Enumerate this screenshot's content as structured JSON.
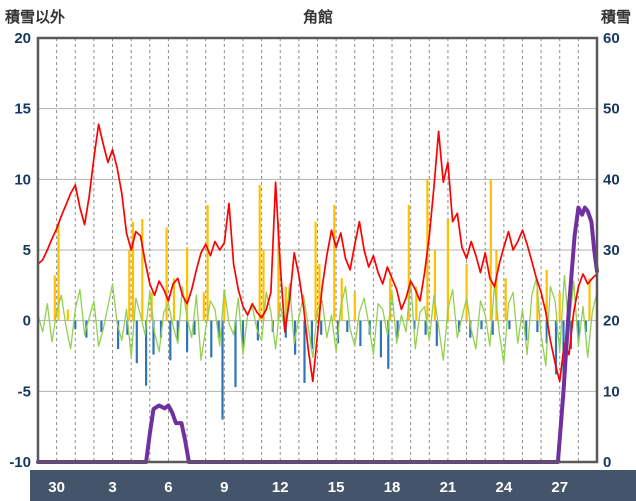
{
  "chart_data": {
    "type": "line",
    "title": "角館",
    "left_axis": {
      "label": "積雪以外",
      "min": -10,
      "max": 20,
      "ticks": [
        20,
        15,
        10,
        5,
        0,
        -5,
        -10
      ]
    },
    "right_axis": {
      "label": "積雪",
      "min": 0,
      "max": 60,
      "ticks": [
        60,
        50,
        40,
        30,
        20,
        10,
        0
      ]
    },
    "x_axis": {
      "min": 0,
      "max": 30,
      "tick_days": [
        1,
        4,
        7,
        10,
        13,
        16,
        19,
        22,
        25,
        28
      ],
      "tick_labels": [
        "30",
        "3",
        "6",
        "9",
        "12",
        "15",
        "18",
        "21",
        "24",
        "27"
      ],
      "gridline_interval_days": 1
    },
    "grid": true,
    "legend": "none",
    "colors": {
      "grid": "#b3b3b3",
      "vgrid": "#8c8c8c",
      "border": "#595959",
      "tick_text": "#17375d",
      "footer_bg": "#44546a",
      "footer_text": "#ffffff",
      "header_text": "#333333"
    },
    "series": [
      {
        "name": "orange-bars",
        "kind": "bar",
        "axis": "left",
        "color": "#FFC000",
        "points": [
          [
            0.9,
            3.2
          ],
          [
            1.1,
            7.0
          ],
          [
            1.6,
            0.8
          ],
          [
            4.9,
            5.0
          ],
          [
            5.1,
            7.0
          ],
          [
            5.6,
            7.2
          ],
          [
            6.1,
            2.0
          ],
          [
            6.9,
            6.6
          ],
          [
            7.3,
            3.0
          ],
          [
            8.0,
            5.2
          ],
          [
            8.9,
            2.0
          ],
          [
            9.1,
            8.2
          ],
          [
            10.0,
            2.2
          ],
          [
            11.9,
            9.6
          ],
          [
            12.1,
            5.0
          ],
          [
            12.9,
            7.0
          ],
          [
            13.3,
            2.4
          ],
          [
            14.9,
            7.0
          ],
          [
            15.1,
            4.0
          ],
          [
            15.9,
            8.2
          ],
          [
            16.3,
            3.0
          ],
          [
            17.0,
            2.0
          ],
          [
            18.9,
            3.0
          ],
          [
            19.9,
            8.2
          ],
          [
            20.3,
            2.4
          ],
          [
            20.9,
            10.0
          ],
          [
            21.3,
            5.0
          ],
          [
            22.0,
            7.2
          ],
          [
            23.0,
            4.0
          ],
          [
            24.3,
            10.0
          ],
          [
            24.6,
            5.0
          ],
          [
            25.1,
            3.0
          ],
          [
            26.8,
            2.2
          ],
          [
            27.3,
            3.6
          ],
          [
            28.0,
            2.0
          ],
          [
            29.6,
            3.0
          ]
        ]
      },
      {
        "name": "blue-bars",
        "kind": "bar",
        "axis": "left",
        "color": "#2E75B6",
        "points": [
          [
            2.0,
            -0.6
          ],
          [
            2.6,
            -1.2
          ],
          [
            3.4,
            -0.8
          ],
          [
            4.3,
            -2.0
          ],
          [
            4.8,
            -1.0
          ],
          [
            5.3,
            -3.0
          ],
          [
            5.8,
            -4.6
          ],
          [
            6.2,
            -2.4
          ],
          [
            6.6,
            -1.2
          ],
          [
            7.1,
            -2.8
          ],
          [
            7.5,
            -1.4
          ],
          [
            8.0,
            -2.2
          ],
          [
            8.4,
            -1.0
          ],
          [
            9.3,
            -2.6
          ],
          [
            9.7,
            -1.2
          ],
          [
            9.9,
            -7.0
          ],
          [
            10.6,
            -4.7
          ],
          [
            11.0,
            -2.0
          ],
          [
            11.8,
            -1.4
          ],
          [
            12.6,
            -0.8
          ],
          [
            13.3,
            -1.2
          ],
          [
            13.8,
            -2.4
          ],
          [
            14.3,
            -4.4
          ],
          [
            14.7,
            -2.0
          ],
          [
            15.2,
            -1.0
          ],
          [
            16.1,
            -1.6
          ],
          [
            16.6,
            -0.8
          ],
          [
            17.3,
            -1.8
          ],
          [
            17.8,
            -1.0
          ],
          [
            18.4,
            -2.6
          ],
          [
            18.8,
            -3.4
          ],
          [
            19.3,
            -1.2
          ],
          [
            20.2,
            -0.6
          ],
          [
            20.8,
            -1.0
          ],
          [
            21.4,
            -1.8
          ],
          [
            22.6,
            -0.8
          ],
          [
            23.2,
            -1.2
          ],
          [
            23.8,
            -0.6
          ],
          [
            24.4,
            -1.0
          ],
          [
            25.3,
            -0.6
          ],
          [
            26.2,
            -1.4
          ],
          [
            26.8,
            -0.8
          ],
          [
            27.3,
            -1.6
          ],
          [
            27.8,
            -3.8
          ],
          [
            28.2,
            -4.4
          ],
          [
            28.6,
            -2.0
          ],
          [
            29.0,
            -1.2
          ],
          [
            29.4,
            -0.8
          ]
        ]
      },
      {
        "name": "green-line",
        "kind": "line",
        "axis": "left",
        "color": "#92D050",
        "width": 1.3,
        "x_start": 0,
        "x_step": 0.25,
        "values": [
          0.4,
          -0.8,
          1.2,
          -1.5,
          0.6,
          1.8,
          -0.4,
          -2.0,
          0.8,
          2.2,
          -1.0,
          0.2,
          1.4,
          -1.8,
          -0.6,
          1.0,
          2.6,
          -0.2,
          -1.4,
          0.8,
          -2.6,
          1.6,
          0.4,
          -1.0,
          2.0,
          -0.8,
          -2.2,
          0.6,
          1.2,
          -0.4,
          -1.6,
          2.4,
          0.2,
          -1.2,
          1.8,
          -2.8,
          -0.6,
          1.4,
          0.8,
          -1.8,
          2.2,
          -0.2,
          -1.0,
          1.6,
          -2.4,
          0.4,
          1.0,
          -0.6,
          -1.4,
          2.0,
          0.6,
          -2.0,
          1.2,
          -0.8,
          2.6,
          -1.6,
          0.2,
          1.8,
          -0.4,
          -2.6,
          0.8,
          1.4,
          -1.2,
          0.4,
          -2.2,
          1.0,
          2.4,
          -0.6,
          -1.8,
          0.6,
          1.6,
          -0.2,
          -2.4,
          1.2,
          0.8,
          -1.0,
          2.0,
          -1.6,
          0.4,
          -0.8,
          2.8,
          -2.0,
          0.6,
          1.0,
          -1.4,
          1.8,
          -0.4,
          -2.8,
          0.8,
          2.2,
          -1.2,
          0.2,
          1.6,
          -0.6,
          -2.0,
          1.4,
          0.4,
          -1.8,
          2.6,
          -0.8,
          -3.0,
          1.2,
          2.0,
          -1.6,
          0.8,
          -2.4,
          1.8,
          3.0,
          -1.0,
          -3.2,
          2.4,
          1.4,
          -2.2,
          3.2,
          -0.6,
          2.8,
          -1.8,
          1.0,
          -2.6,
          0.6,
          2.0
        ]
      },
      {
        "name": "red-line",
        "kind": "line",
        "axis": "left",
        "color": "#FF0000",
        "width": 1.7,
        "x_start": 0,
        "x_step": 0.25,
        "values": [
          4.0,
          4.3,
          5.0,
          5.8,
          6.5,
          7.4,
          8.2,
          9.0,
          9.6,
          8.0,
          6.8,
          8.8,
          11.5,
          13.9,
          12.5,
          11.2,
          12.1,
          10.8,
          9.0,
          6.2,
          5.0,
          6.3,
          6.0,
          4.2,
          2.6,
          1.8,
          2.8,
          2.2,
          1.4,
          2.6,
          3.0,
          1.8,
          1.2,
          2.2,
          3.6,
          4.8,
          5.4,
          4.6,
          5.6,
          5.0,
          5.5,
          8.3,
          4.0,
          2.2,
          1.0,
          0.4,
          1.2,
          0.6,
          0.2,
          0.8,
          2.0,
          9.8,
          4.0,
          -0.8,
          1.5,
          4.8,
          3.2,
          1.0,
          -2.0,
          -4.3,
          -1.0,
          2.4,
          4.6,
          6.4,
          5.2,
          6.2,
          4.4,
          3.6,
          5.4,
          7.0,
          5.0,
          3.8,
          4.6,
          3.4,
          2.6,
          3.8,
          3.0,
          2.2,
          0.8,
          1.6,
          2.8,
          2.2,
          1.4,
          3.4,
          6.0,
          9.5,
          13.4,
          9.8,
          11.2,
          7.0,
          7.6,
          5.2,
          4.4,
          5.6,
          4.6,
          3.4,
          4.8,
          3.0,
          2.4,
          4.0,
          5.2,
          6.3,
          5.0,
          5.6,
          6.4,
          5.4,
          4.2,
          3.0,
          2.0,
          0.6,
          -1.4,
          -3.0,
          -4.3,
          -1.6,
          -2.4,
          0.6,
          2.4,
          3.3,
          2.6,
          3.0,
          3.3
        ]
      },
      {
        "name": "purple-line",
        "kind": "line",
        "axis": "right",
        "color": "#7030A0",
        "width": 4,
        "points": [
          [
            0,
            0
          ],
          [
            5.8,
            0
          ],
          [
            6.0,
            4
          ],
          [
            6.2,
            7.5
          ],
          [
            6.5,
            8
          ],
          [
            6.8,
            7.6
          ],
          [
            7.0,
            8
          ],
          [
            7.2,
            7
          ],
          [
            7.4,
            5.5
          ],
          [
            7.7,
            5.5
          ],
          [
            7.9,
            3
          ],
          [
            8.1,
            0
          ],
          [
            27.9,
            0
          ],
          [
            28.2,
            10
          ],
          [
            28.5,
            22
          ],
          [
            28.8,
            32
          ],
          [
            29.0,
            36
          ],
          [
            29.2,
            35
          ],
          [
            29.35,
            36
          ],
          [
            29.5,
            35.5
          ],
          [
            29.7,
            34
          ],
          [
            29.85,
            30
          ],
          [
            30,
            27
          ]
        ]
      }
    ]
  }
}
